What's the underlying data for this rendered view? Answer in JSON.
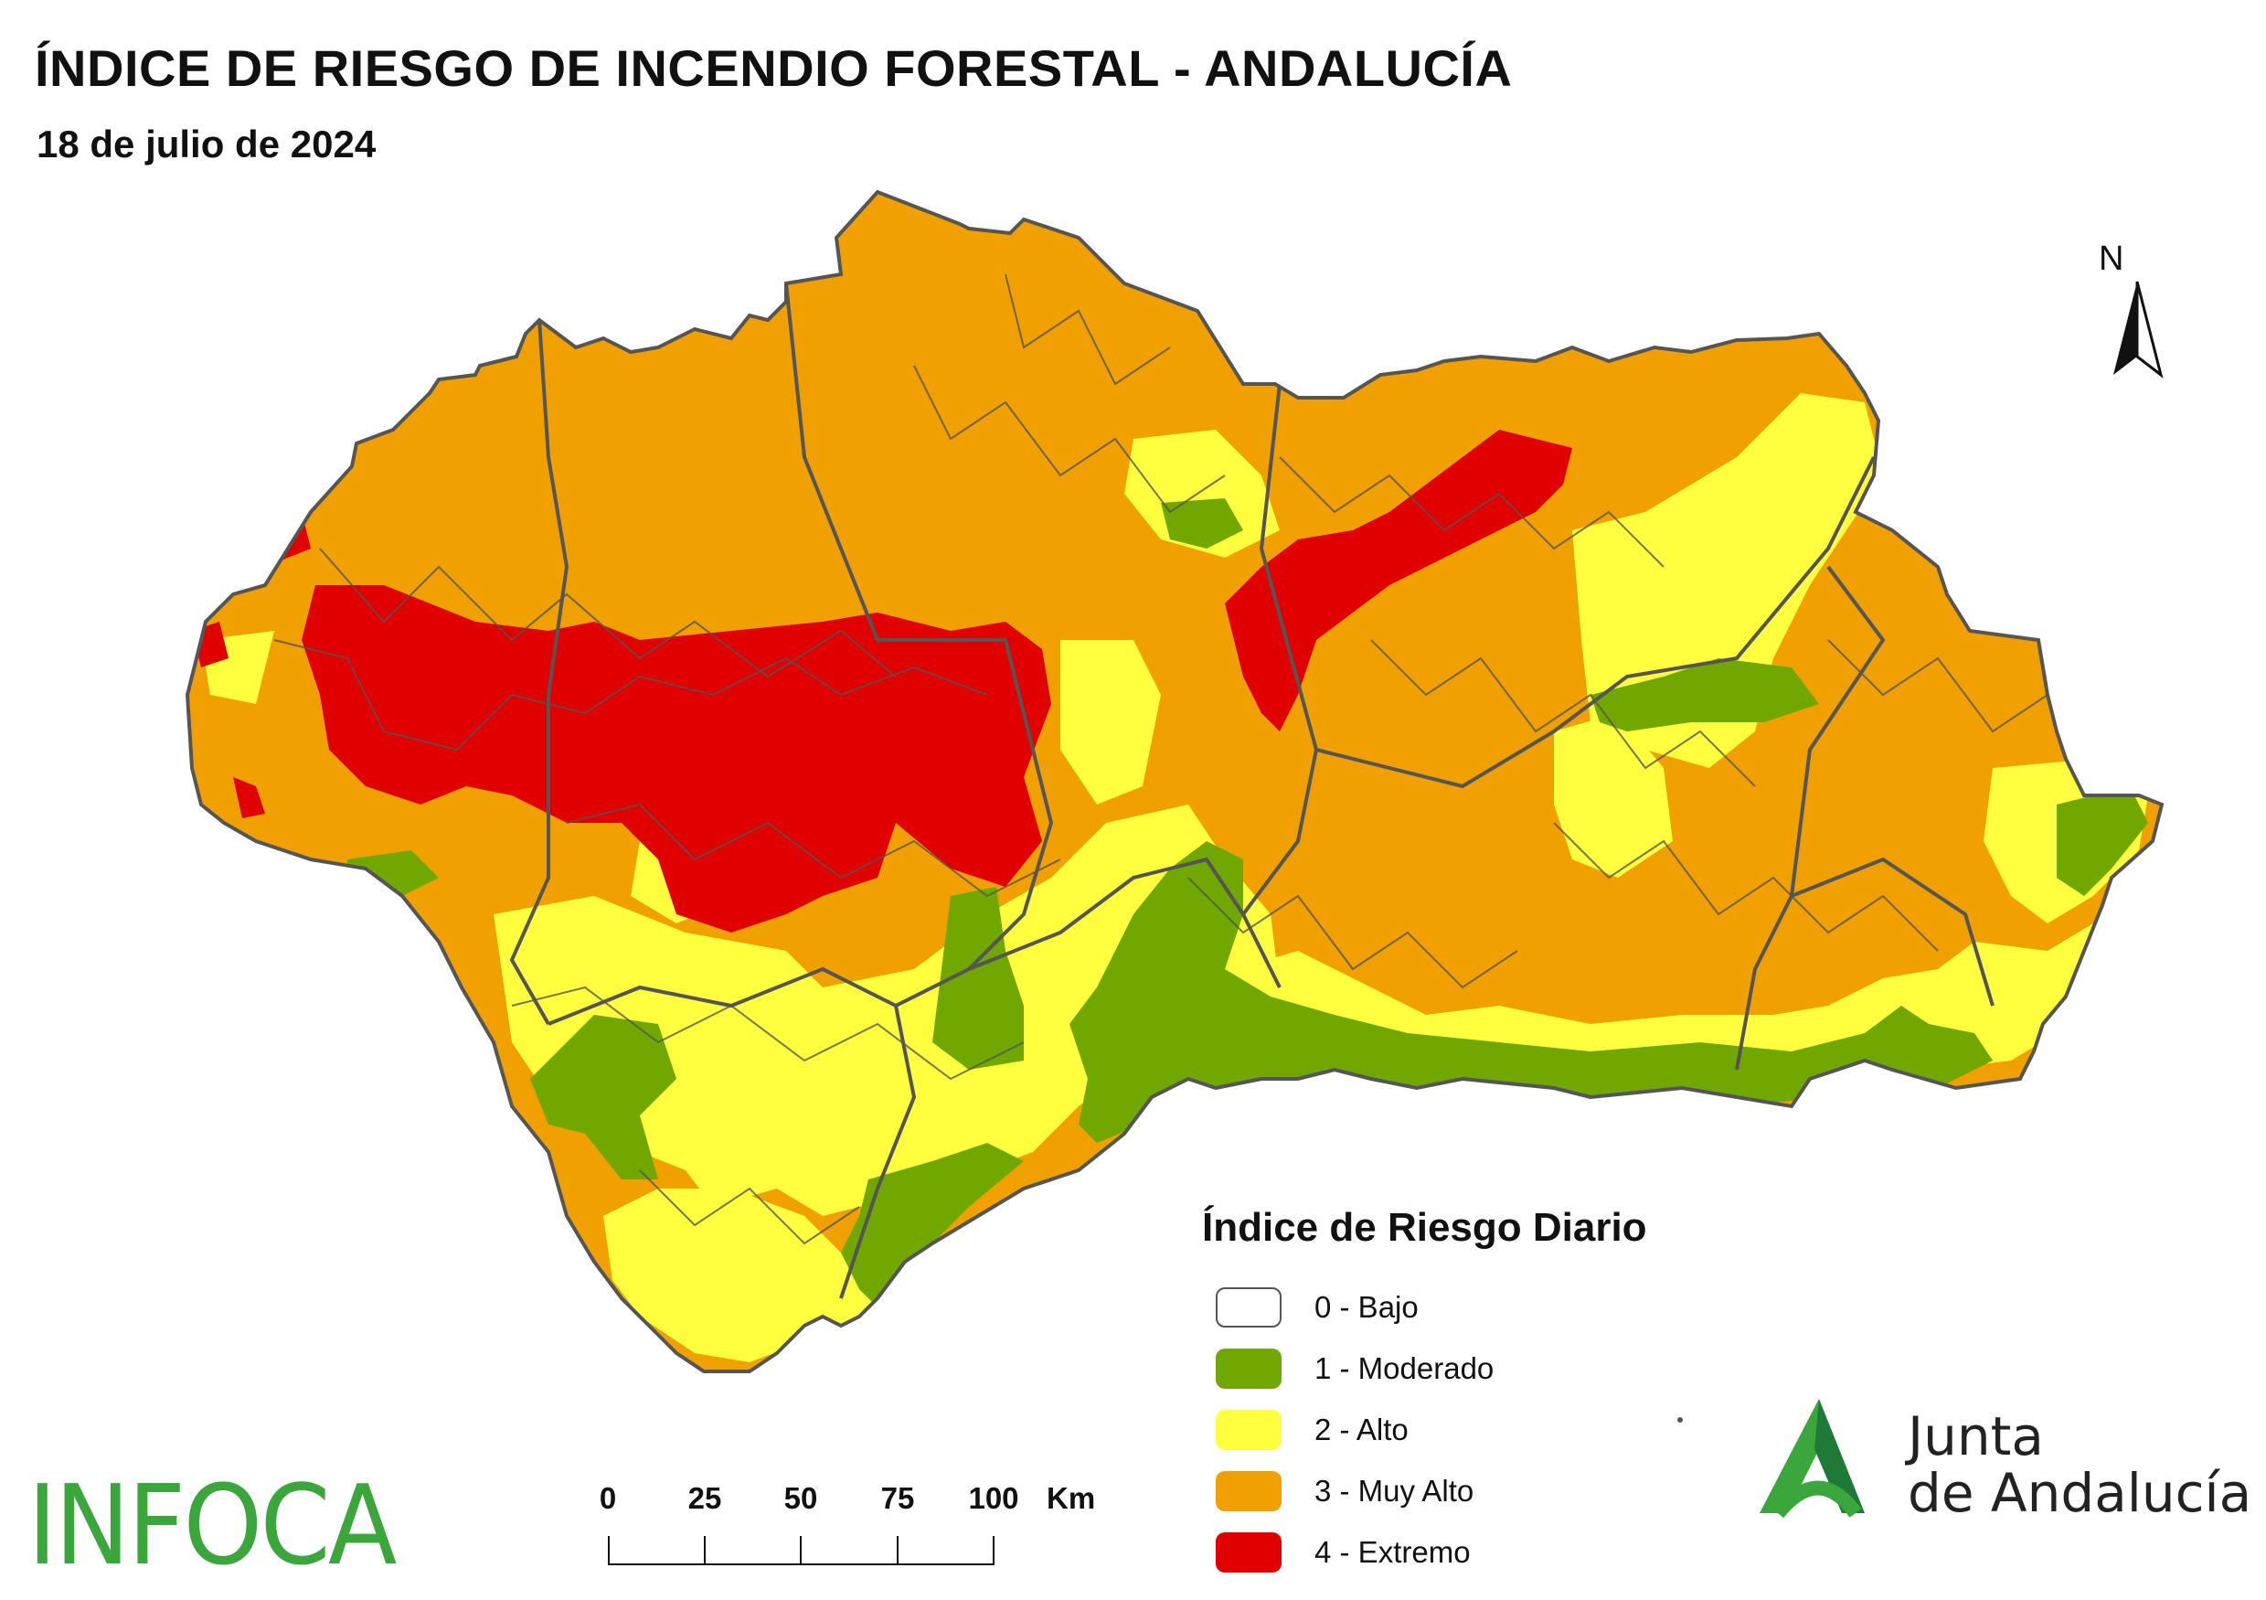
{
  "title": "ÍNDICE DE RIESGO DE INCENDIO FORESTAL - ANDALUCÍA",
  "subtitle": "18 de julio de 2024",
  "north_label": "N",
  "legend": {
    "title": "Índice de Riesgo Diario",
    "items": [
      {
        "label": "0 - Bajo",
        "color": "#ffffff"
      },
      {
        "label": "1 - Moderado",
        "color": "#70a800"
      },
      {
        "label": "2 - Alto",
        "color": "#ffff40"
      },
      {
        "label": "3 - Muy Alto",
        "color": "#f0a000"
      },
      {
        "label": "4 - Extremo",
        "color": "#e00000"
      }
    ]
  },
  "scale_bar": {
    "ticks": [
      "0",
      "25",
      "50",
      "75",
      "100"
    ],
    "unit": "Km"
  },
  "logos": {
    "infoca": "INFOCA",
    "junta_line1": "Junta",
    "junta_line2": "de Andalucía",
    "junta_color": "#1f9a4a"
  },
  "colors": {
    "moderado": "#70a800",
    "alto": "#ffff40",
    "muy_alto": "#f0a000",
    "extremo": "#e00000",
    "border": "#555555"
  }
}
